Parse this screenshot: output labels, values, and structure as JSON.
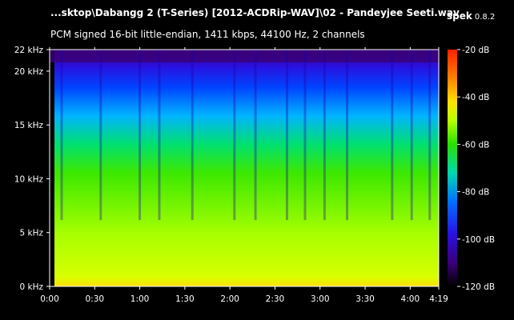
{
  "header": {
    "file_title": "...sktop\\Dabangg 2 (T-Series) [2012-ACDRip-WAV]\\02 - Pandeyjee Seeti.wav",
    "app_name": "spek",
    "app_version": "0.8.2",
    "stream_info": "PCM signed 16-bit little-endian, 1411 kbps, 44100 Hz, 2 channels"
  },
  "colors": {
    "background": "#000000",
    "text": "#ffffff",
    "palette": [
      "#000000",
      "#3a0078",
      "#2a10e0",
      "#0072ff",
      "#00d8b0",
      "#28e000",
      "#b8ff00",
      "#ffe000",
      "#ff8000",
      "#ff2000"
    ]
  },
  "chart_data": {
    "type": "heatmap",
    "x_axis": {
      "unit": "time",
      "range_seconds": [
        0,
        259
      ],
      "ticks": [
        {
          "label": "0:00",
          "seconds": 0
        },
        {
          "label": "0:30",
          "seconds": 30
        },
        {
          "label": "1:00",
          "seconds": 60
        },
        {
          "label": "1:30",
          "seconds": 90
        },
        {
          "label": "2:00",
          "seconds": 120
        },
        {
          "label": "2:30",
          "seconds": 150
        },
        {
          "label": "3:00",
          "seconds": 180
        },
        {
          "label": "3:30",
          "seconds": 210
        },
        {
          "label": "4:00",
          "seconds": 240
        },
        {
          "label": "4:19",
          "seconds": 259
        }
      ]
    },
    "y_axis": {
      "unit": "kHz",
      "range": [
        0,
        22
      ],
      "ticks": [
        {
          "label": "0 kHz",
          "value": 0
        },
        {
          "label": "5 kHz",
          "value": 5
        },
        {
          "label": "10 kHz",
          "value": 10
        },
        {
          "label": "15 kHz",
          "value": 15
        },
        {
          "label": "20 kHz",
          "value": 20
        },
        {
          "label": "22 kHz",
          "value": 22
        }
      ]
    },
    "color_scale": {
      "unit": "dB",
      "range": [
        -120,
        -20
      ],
      "ticks": [
        {
          "label": "-20 dB",
          "value": -20
        },
        {
          "label": "-40 dB",
          "value": -40
        },
        {
          "label": "-60 dB",
          "value": -60
        },
        {
          "label": "-80 dB",
          "value": -80
        },
        {
          "label": "-100 dB",
          "value": -100
        },
        {
          "label": "-120 dB",
          "value": -120
        }
      ]
    },
    "quiet_time_bands_seconds": [
      8,
      34,
      60,
      73,
      95,
      123,
      137,
      158,
      170,
      183,
      198,
      228,
      241,
      253
    ],
    "lowpass_cutoff_khz": 21
  }
}
